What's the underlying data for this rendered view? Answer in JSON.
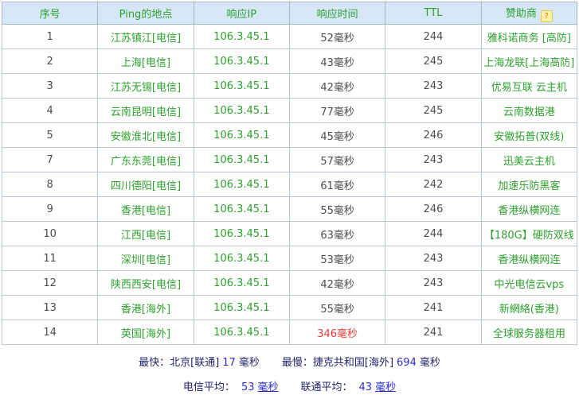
{
  "colors": {
    "header_bg": "#d6e7f7",
    "green": "#2fa02f",
    "red": "#e53b3b",
    "navy": "#23236b",
    "blue": "#2d2dd2"
  },
  "table": {
    "headers": [
      "序号",
      "Ping的地点",
      "响应IP",
      "响应时间",
      "TTL",
      "赞助商"
    ],
    "help_icon_label": "?",
    "rows": [
      {
        "no": "1",
        "location": "江苏镇江[电信]",
        "ip": "106.3.45.1",
        "time": "52毫秒",
        "ttl": "244",
        "sponsor": "雅科诺商务 [高防]",
        "time_red": false
      },
      {
        "no": "2",
        "location": "上海[电信]",
        "ip": "106.3.45.1",
        "time": "43毫秒",
        "ttl": "245",
        "sponsor": "上海龙联[上海高防]",
        "time_red": false
      },
      {
        "no": "3",
        "location": "江苏无锡[电信]",
        "ip": "106.3.45.1",
        "time": "42毫秒",
        "ttl": "243",
        "sponsor": "优易互联 云主机",
        "time_red": false
      },
      {
        "no": "4",
        "location": "云南昆明[电信]",
        "ip": "106.3.45.1",
        "time": "77毫秒",
        "ttl": "245",
        "sponsor": "云南数据港",
        "time_red": false
      },
      {
        "no": "5",
        "location": "安徽淮北[电信]",
        "ip": "106.3.45.1",
        "time": "45毫秒",
        "ttl": "246",
        "sponsor": "安徽拓普(双线)",
        "time_red": false
      },
      {
        "no": "7",
        "location": "广东东莞[电信]",
        "ip": "106.3.45.1",
        "time": "57毫秒",
        "ttl": "243",
        "sponsor": "迅美云主机",
        "time_red": false
      },
      {
        "no": "8",
        "location": "四川德阳[电信]",
        "ip": "106.3.45.1",
        "time": "61毫秒",
        "ttl": "242",
        "sponsor": "加速乐防黑客",
        "time_red": false
      },
      {
        "no": "9",
        "location": "香港[电信]",
        "ip": "106.3.45.1",
        "time": "55毫秒",
        "ttl": "246",
        "sponsor": "香港纵横网连",
        "time_red": false
      },
      {
        "no": "10",
        "location": "江西[电信]",
        "ip": "106.3.45.1",
        "time": "63毫秒",
        "ttl": "244",
        "sponsor": "【180G】硬防双线",
        "time_red": false
      },
      {
        "no": "11",
        "location": "深圳[电信]",
        "ip": "106.3.45.1",
        "time": "53毫秒",
        "ttl": "243",
        "sponsor": "香港纵横网连",
        "time_red": false
      },
      {
        "no": "12",
        "location": "陕西西安[电信]",
        "ip": "106.3.45.1",
        "time": "42毫秒",
        "ttl": "243",
        "sponsor": "中光电信云vps",
        "time_red": false
      },
      {
        "no": "13",
        "location": "香港[海外]",
        "ip": "106.3.45.1",
        "time": "55毫秒",
        "ttl": "241",
        "sponsor": "新網絡(香港)",
        "time_red": false
      },
      {
        "no": "14",
        "location": "英国[海外]",
        "ip": "106.3.45.1",
        "time": "346毫秒",
        "ttl": "241",
        "sponsor": "全球服务器租用",
        "time_red": true
      }
    ]
  },
  "summary": {
    "fastest_label": "最快：",
    "fastest_location": "北京[联通]",
    "fastest_value": "17",
    "fastest_unit": "毫秒",
    "slowest_label": "最慢：",
    "slowest_location": "捷克共和国[海外]",
    "slowest_value": "694",
    "slowest_unit": "毫秒",
    "telecom_avg_label": "电信平均：",
    "telecom_avg_value": "53",
    "telecom_avg_unit": "毫秒",
    "unicom_avg_label": "联通平均：",
    "unicom_avg_value": "43",
    "unicom_avg_unit": "毫秒"
  }
}
